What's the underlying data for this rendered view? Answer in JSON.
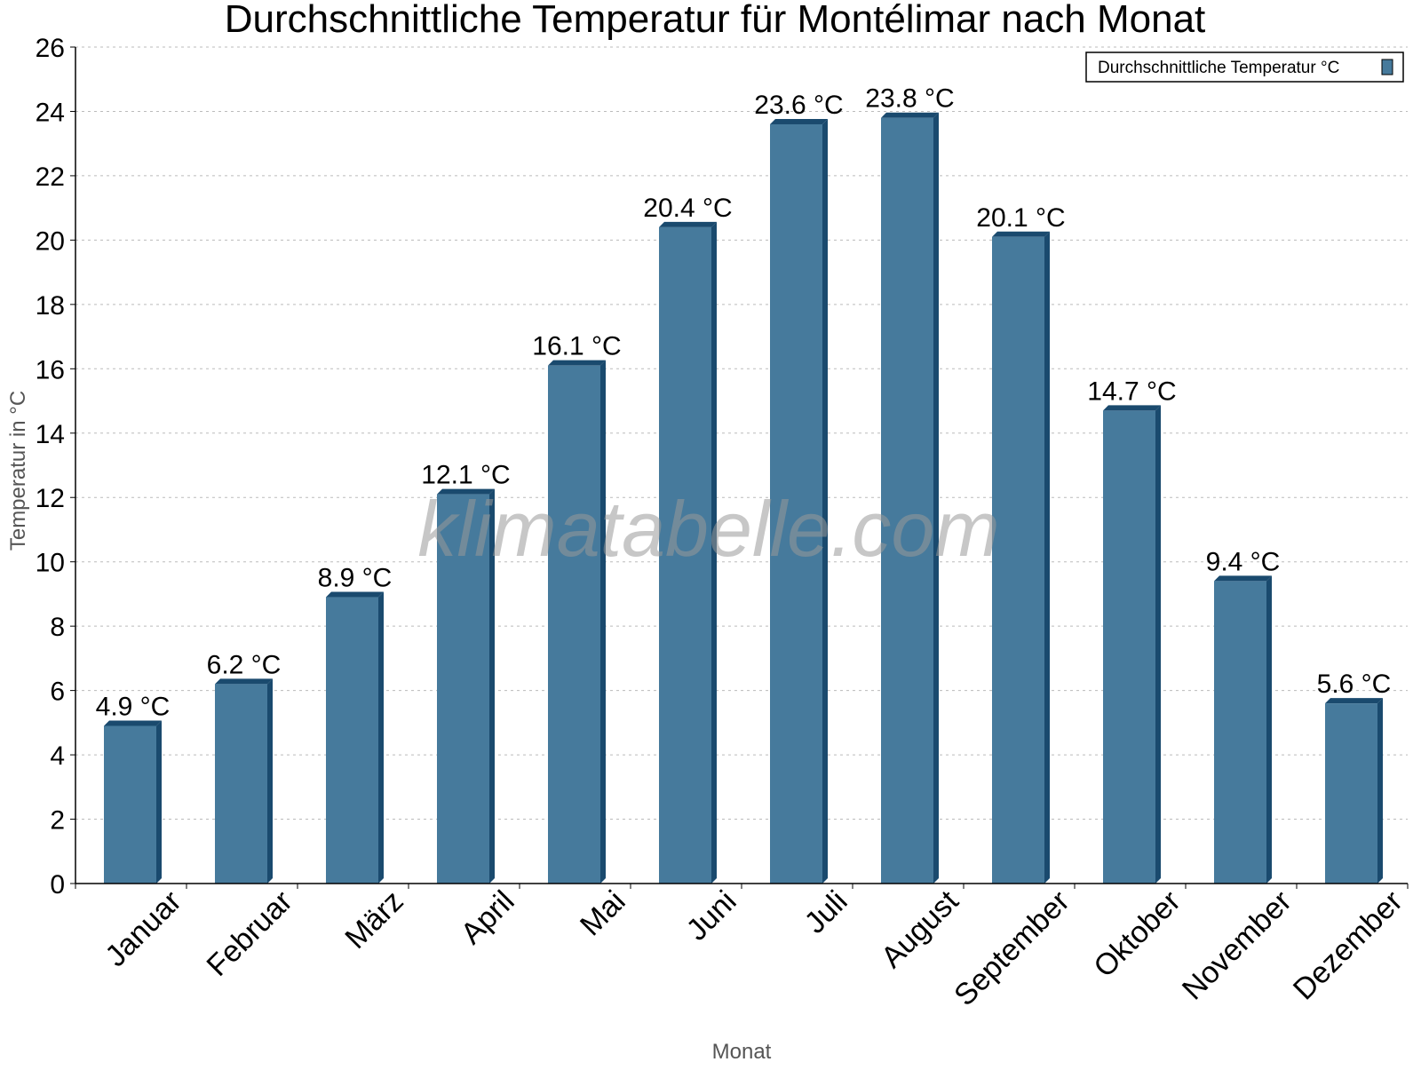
{
  "chart_data": {
    "type": "bar",
    "title": "Durchschnittliche Temperatur für Montélimar nach Monat",
    "xlabel": "Monat",
    "ylabel": "Temperatur in °C",
    "ylim": [
      0,
      26
    ],
    "yticks": [
      "0",
      "2",
      "4",
      "6",
      "8",
      "10",
      "12",
      "14",
      "16",
      "18",
      "20",
      "22",
      "24",
      "26"
    ],
    "grid": "horizontal dotted",
    "legend_position": "top-right",
    "categories": [
      "Januar",
      "Februar",
      "März",
      "April",
      "Mai",
      "Juni",
      "Juli",
      "August",
      "September",
      "Oktober",
      "November",
      "Dezember"
    ],
    "series": [
      {
        "name": "Durchschnittliche Temperatur °C",
        "values": [
          4.9,
          6.2,
          8.9,
          12.1,
          16.1,
          20.4,
          23.6,
          23.8,
          20.1,
          14.7,
          9.4,
          5.6
        ],
        "labels": [
          "4.9 °C",
          "6.2 °C",
          "8.9 °C",
          "12.1 °C",
          "16.1 °C",
          "20.4 °C",
          "23.6 °C",
          "23.8 °C",
          "20.1 °C",
          "14.7 °C",
          "9.4 °C",
          "5.6 °C"
        ],
        "color": "#467a9c",
        "side_color": "#1a4a6e"
      }
    ],
    "watermark": "klimatabelle.com"
  }
}
